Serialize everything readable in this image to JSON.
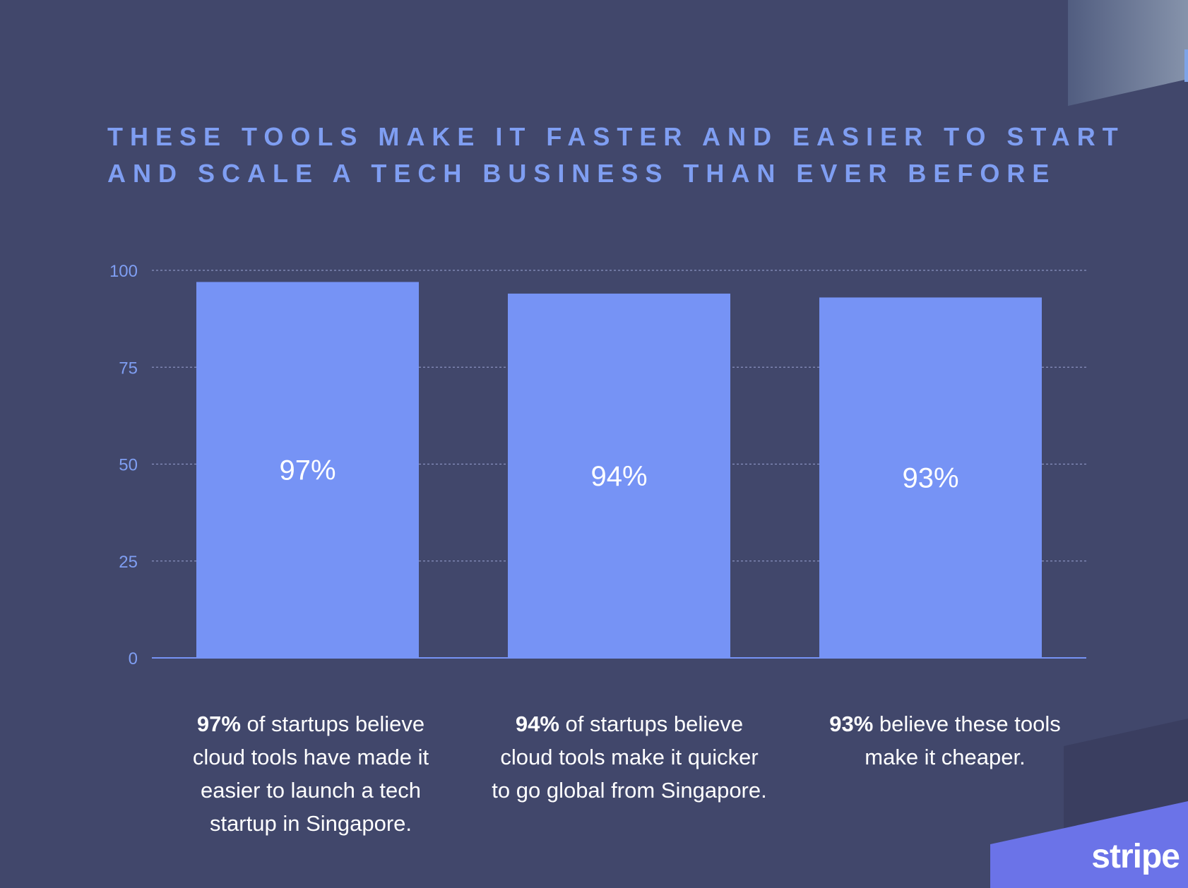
{
  "title_lines": [
    "THESE TOOLS MAKE IT FASTER AND EASIER TO START",
    "AND SCALE A TECH BUSINESS THAN EVER BEFORE"
  ],
  "chart_data": {
    "type": "bar",
    "title": "THESE TOOLS MAKE IT FASTER AND EASIER TO START AND SCALE A TECH BUSINESS THAN EVER BEFORE",
    "categories": [
      "97% of startups believe cloud tools have made it easier to launch a tech startup in Singapore.",
      "94% of startups believe cloud tools make it quicker to go global from Singapore.",
      "93% believe these tools make it cheaper."
    ],
    "values": [
      97,
      94,
      93
    ],
    "data_labels": [
      "97%",
      "94%",
      "93%"
    ],
    "ylim": [
      0,
      100
    ],
    "yticks": [
      0,
      25,
      50,
      75,
      100
    ],
    "ytick_labels": [
      "0",
      "25",
      "50",
      "75",
      "100"
    ],
    "grid": true,
    "bar_color": "#7693f5",
    "tick_color": "#7f9ef2",
    "grid_color": "#8a92c0",
    "data_label_color": "#ffffff"
  },
  "captions": [
    {
      "bold": "97%",
      "text": " of startups believe cloud tools have made it easier to launch a tech startup in Singapore."
    },
    {
      "bold": "94%",
      "text": " of startups believe cloud tools make it quicker to go global from Singapore."
    },
    {
      "bold": "93%",
      "text": " believe these tools make it cheaper."
    }
  ],
  "logo_text": "stripe",
  "colors": {
    "background": "#41476b",
    "accent": "#6b73e8",
    "title": "#7f9ef2"
  }
}
